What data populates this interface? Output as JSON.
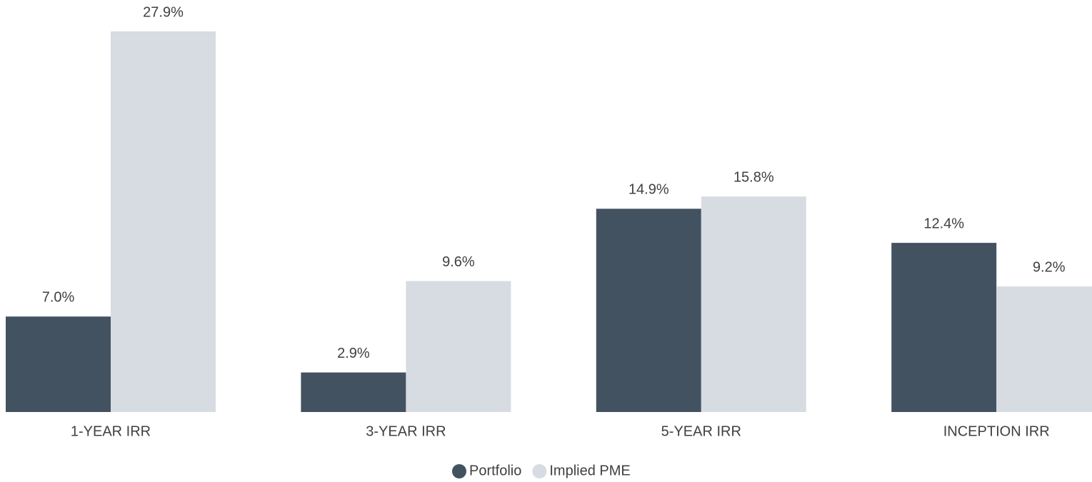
{
  "chart_data": {
    "type": "bar",
    "categories": [
      "1-YEAR IRR",
      "3-YEAR IRR",
      "5-YEAR IRR",
      "INCEPTION IRR"
    ],
    "series": [
      {
        "name": "Portfolio",
        "color": "#435260",
        "values": [
          7.0,
          2.9,
          14.9,
          12.4
        ],
        "value_labels": [
          "7.0%",
          "2.9%",
          "14.9%",
          "12.4%"
        ]
      },
      {
        "name": "Implied PME",
        "color": "#d6dce2",
        "values": [
          27.9,
          9.6,
          15.8,
          9.2
        ],
        "value_labels": [
          "27.9%",
          "9.6%",
          "15.8%",
          "9.2%"
        ]
      }
    ]
  }
}
